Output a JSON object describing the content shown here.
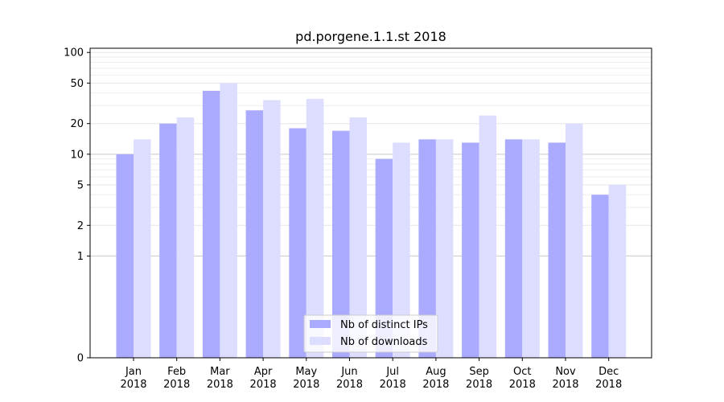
{
  "chart_data": {
    "type": "bar",
    "title": "pd.porgene.1.1.st 2018",
    "xlabel": "",
    "ylabel": "",
    "y_scale": "symlog",
    "ylim": [
      0,
      110
    ],
    "y_ticks": [
      0,
      1,
      2,
      5,
      10,
      20,
      50,
      100
    ],
    "y_tick_labels": [
      "0",
      "1",
      "2",
      "5",
      "10",
      "20",
      "50",
      "100"
    ],
    "grid": true,
    "legend_position": "bottom-center",
    "categories": [
      [
        "Jan",
        "2018"
      ],
      [
        "Feb",
        "2018"
      ],
      [
        "Mar",
        "2018"
      ],
      [
        "Apr",
        "2018"
      ],
      [
        "May",
        "2018"
      ],
      [
        "Jun",
        "2018"
      ],
      [
        "Jul",
        "2018"
      ],
      [
        "Aug",
        "2018"
      ],
      [
        "Sep",
        "2018"
      ],
      [
        "Oct",
        "2018"
      ],
      [
        "Nov",
        "2018"
      ],
      [
        "Dec",
        "2018"
      ]
    ],
    "series": [
      {
        "name": "Nb of distinct IPs",
        "color": "#aaaaff",
        "values": [
          10,
          20,
          42,
          27,
          18,
          17,
          9,
          14,
          13,
          14,
          13,
          4
        ]
      },
      {
        "name": "Nb of downloads",
        "color": "#ddddff",
        "values": [
          14,
          23,
          50,
          34,
          35,
          23,
          13,
          14,
          24,
          14,
          20,
          5
        ]
      }
    ]
  }
}
